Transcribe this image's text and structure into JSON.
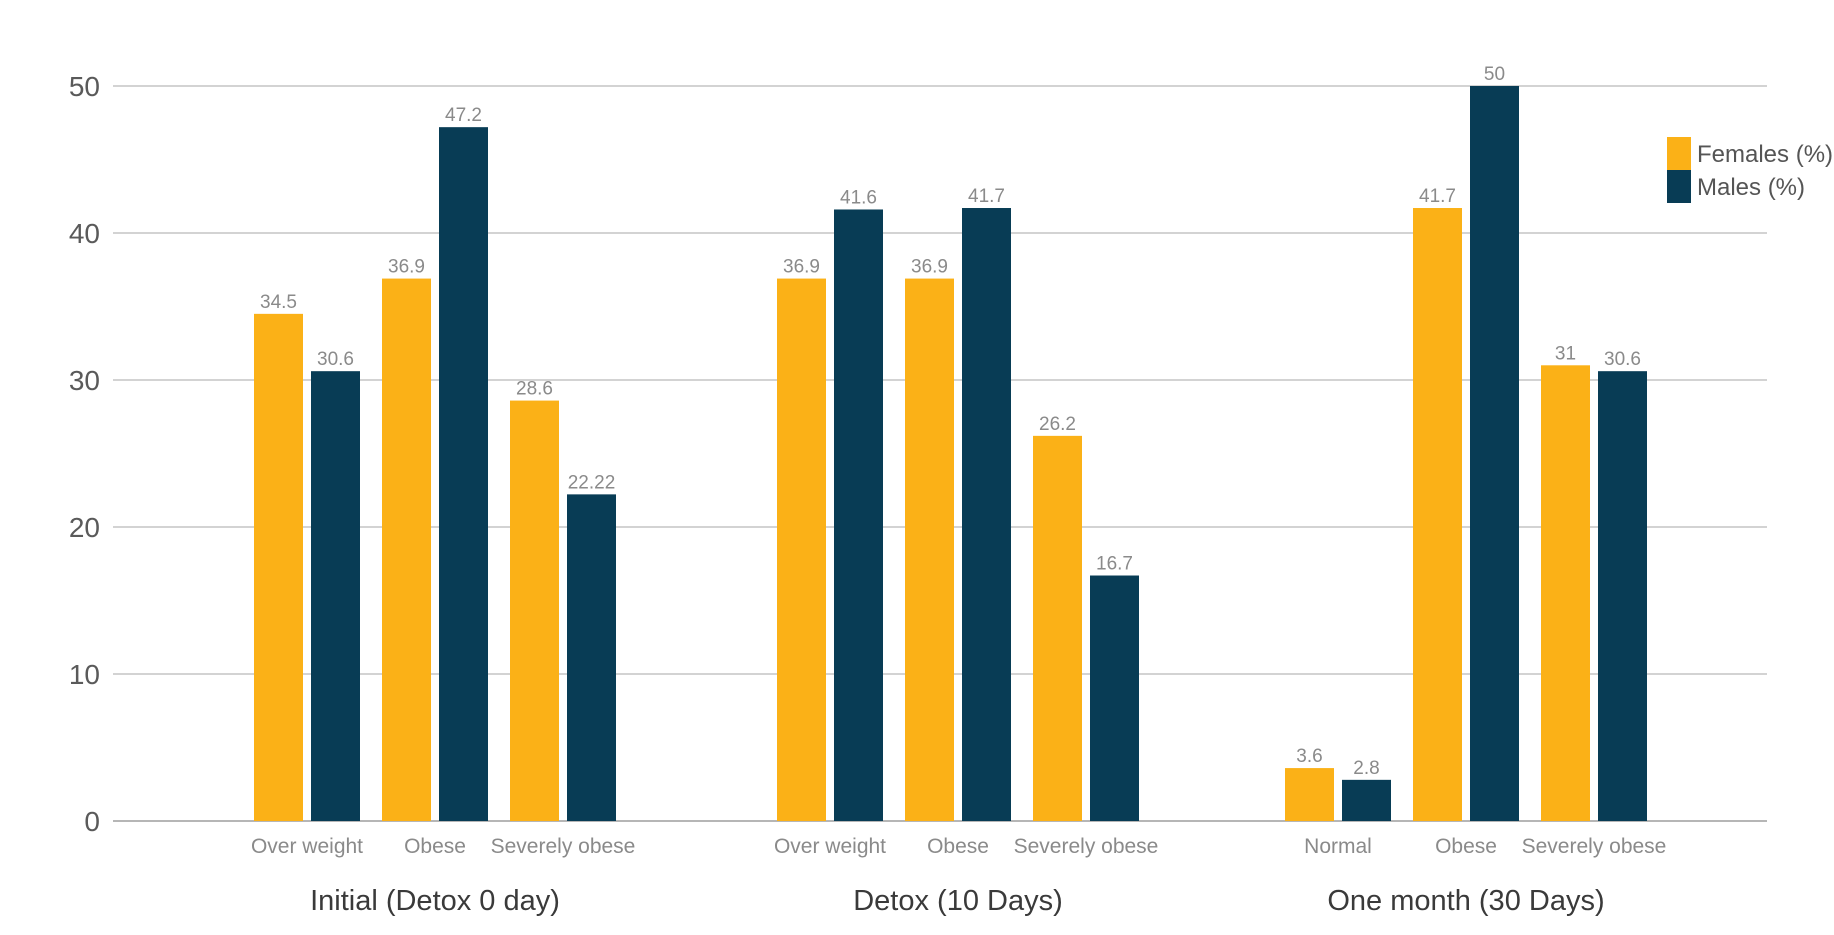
{
  "chart_data": {
    "type": "bar",
    "title": "",
    "xlabel": "",
    "ylabel": "",
    "ylim": [
      0,
      50
    ],
    "yticks": [
      0,
      10,
      20,
      30,
      40,
      50
    ],
    "grid": true,
    "legend_position": "top-right",
    "colors": {
      "females": "#fbb117",
      "males": "#083c55",
      "grid": "#b9b9b9",
      "text": "#8a8a8a"
    },
    "series": [
      {
        "name": "Females (%)",
        "key": "females"
      },
      {
        "name": "Males (%)",
        "key": "males"
      }
    ],
    "groups": [
      {
        "label": "Initial (Detox 0 day)",
        "categories": [
          {
            "label": "Over weight",
            "values": [
              34.5,
              30.6
            ],
            "labels": [
              "34.5",
              "30.6"
            ]
          },
          {
            "label": "Obese",
            "values": [
              36.9,
              47.2
            ],
            "labels": [
              "36.9",
              "47.2"
            ]
          },
          {
            "label": "Severely obese",
            "values": [
              28.6,
              22.22
            ],
            "labels": [
              "28.6",
              "22.22"
            ]
          }
        ]
      },
      {
        "label": "Detox (10 Days)",
        "categories": [
          {
            "label": "Over weight",
            "values": [
              36.9,
              41.6
            ],
            "labels": [
              "36.9",
              "41.6"
            ]
          },
          {
            "label": "Obese",
            "values": [
              36.9,
              41.7
            ],
            "labels": [
              "36.9",
              "41.7"
            ]
          },
          {
            "label": "Severely obese",
            "values": [
              26.2,
              16.7
            ],
            "labels": [
              "26.2",
              "16.7"
            ]
          }
        ]
      },
      {
        "label": "One month (30 Days)",
        "categories": [
          {
            "label": "Normal",
            "values": [
              3.6,
              2.8
            ],
            "labels": [
              "3.6",
              "2.8"
            ]
          },
          {
            "label": "Obese",
            "values": [
              41.7,
              50
            ],
            "labels": [
              "41.7",
              "50"
            ]
          },
          {
            "label": "Severely obese",
            "values": [
              31,
              30.6
            ],
            "labels": [
              "31",
              "30.6"
            ]
          }
        ]
      }
    ]
  }
}
